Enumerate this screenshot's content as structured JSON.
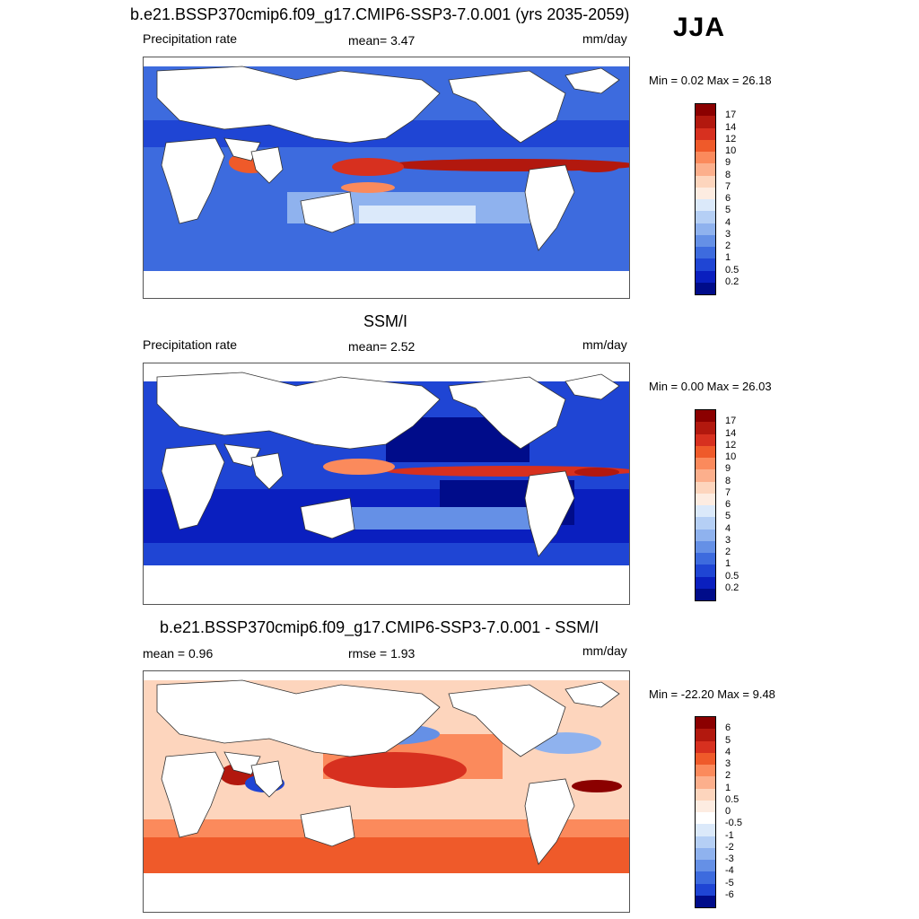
{
  "season": "JJA",
  "panels": [
    {
      "title": "b.e21.BSSP370cmip6.f09_g17.CMIP6-SSP3-7.0.001 (yrs 2035-2059)",
      "left_label": "Precipitation rate",
      "center_label": "mean=   3.47",
      "right_label": "mm/day",
      "minmax": "Min =   0.02 Max =  26.18",
      "colorbar": {
        "labels": [
          "17",
          "14",
          "12",
          "10",
          "9",
          "8",
          "7",
          "6",
          "5",
          "4",
          "3",
          "2",
          "1",
          "0.5",
          "0.2"
        ],
        "colors": [
          "#8b0000",
          "#b2180e",
          "#d7301f",
          "#ef5a2a",
          "#fb8a5c",
          "#fcaf8c",
          "#fdd5bd",
          "#fdece1",
          "#dbe9fa",
          "#b5cff5",
          "#8fb2ee",
          "#6590e6",
          "#3d6bde",
          "#1f45d4",
          "#0a1fbf",
          "#000c8a"
        ]
      }
    },
    {
      "title": "SSM/I",
      "left_label": "Precipitation rate",
      "center_label": "mean=   2.52",
      "right_label": "mm/day",
      "minmax": "Min =   0.00 Max =  26.03",
      "colorbar": {
        "labels": [
          "17",
          "14",
          "12",
          "10",
          "9",
          "8",
          "7",
          "6",
          "5",
          "4",
          "3",
          "2",
          "1",
          "0.5",
          "0.2"
        ],
        "colors": [
          "#8b0000",
          "#b2180e",
          "#d7301f",
          "#ef5a2a",
          "#fb8a5c",
          "#fcaf8c",
          "#fdd5bd",
          "#fdece1",
          "#dbe9fa",
          "#b5cff5",
          "#8fb2ee",
          "#6590e6",
          "#3d6bde",
          "#1f45d4",
          "#0a1fbf",
          "#000c8a"
        ]
      }
    },
    {
      "title": "b.e21.BSSP370cmip6.f09_g17.CMIP6-SSP3-7.0.001 - SSM/I",
      "left_label": "mean =   0.96",
      "center_label": "rmse =   1.93",
      "right_label": "mm/day",
      "minmax": "Min = -22.20 Max =   9.48",
      "colorbar": {
        "labels": [
          "6",
          "5",
          "4",
          "3",
          "2",
          "1",
          "0.5",
          "0",
          "-0.5",
          "-1",
          "-2",
          "-3",
          "-4",
          "-5",
          "-6"
        ],
        "colors": [
          "#8b0000",
          "#b2180e",
          "#d7301f",
          "#ef5a2a",
          "#fb8a5c",
          "#fcaf8c",
          "#fdd5bd",
          "#fdece1",
          "#ffffff",
          "#dbe9fa",
          "#b5cff5",
          "#8fb2ee",
          "#6590e6",
          "#3d6bde",
          "#1f45d4",
          "#000c8a"
        ]
      }
    }
  ]
}
